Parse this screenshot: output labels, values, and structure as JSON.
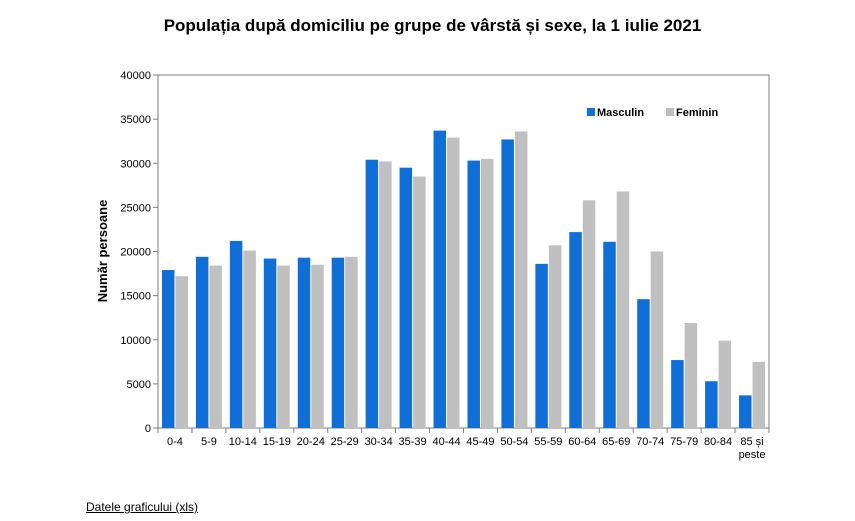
{
  "chart_data": {
    "type": "bar",
    "title": "Populația după domiciliu pe grupe de vârstă și sexe, la 1 iulie 2021",
    "xlabel": "",
    "ylabel": "Număr persoane",
    "ylim": [
      0,
      40000
    ],
    "yticks": [
      0,
      5000,
      10000,
      15000,
      20000,
      25000,
      30000,
      35000,
      40000
    ],
    "ytick_labels": [
      "0",
      "5000",
      "10000",
      "15000",
      "20000",
      "25000",
      "30000",
      "35000",
      "40000"
    ],
    "categories": [
      "0-4",
      "5-9",
      "10-14",
      "15-19",
      "20-24",
      "25-29",
      "30-34",
      "35-39",
      "40-44",
      "45-49",
      "50-54",
      "55-59",
      "60-64",
      "65-69",
      "70-74",
      "75-79",
      "80-84",
      "85 și peste"
    ],
    "series": [
      {
        "name": "Masculin",
        "color": "#0f6fd6",
        "values": [
          17900,
          19400,
          21200,
          19200,
          19300,
          19300,
          30400,
          29500,
          33700,
          30300,
          32700,
          18600,
          22200,
          21100,
          14600,
          7700,
          5300,
          3700
        ]
      },
      {
        "name": "Feminin",
        "color": "#c0c0c0",
        "values": [
          17200,
          18400,
          20100,
          18400,
          18500,
          19400,
          30200,
          28500,
          32900,
          30500,
          33600,
          20700,
          25800,
          26800,
          20000,
          11900,
          9900,
          7500
        ]
      }
    ],
    "legend_position": "top-right",
    "grid": false
  },
  "link_text": "Datele graficului (xls)"
}
